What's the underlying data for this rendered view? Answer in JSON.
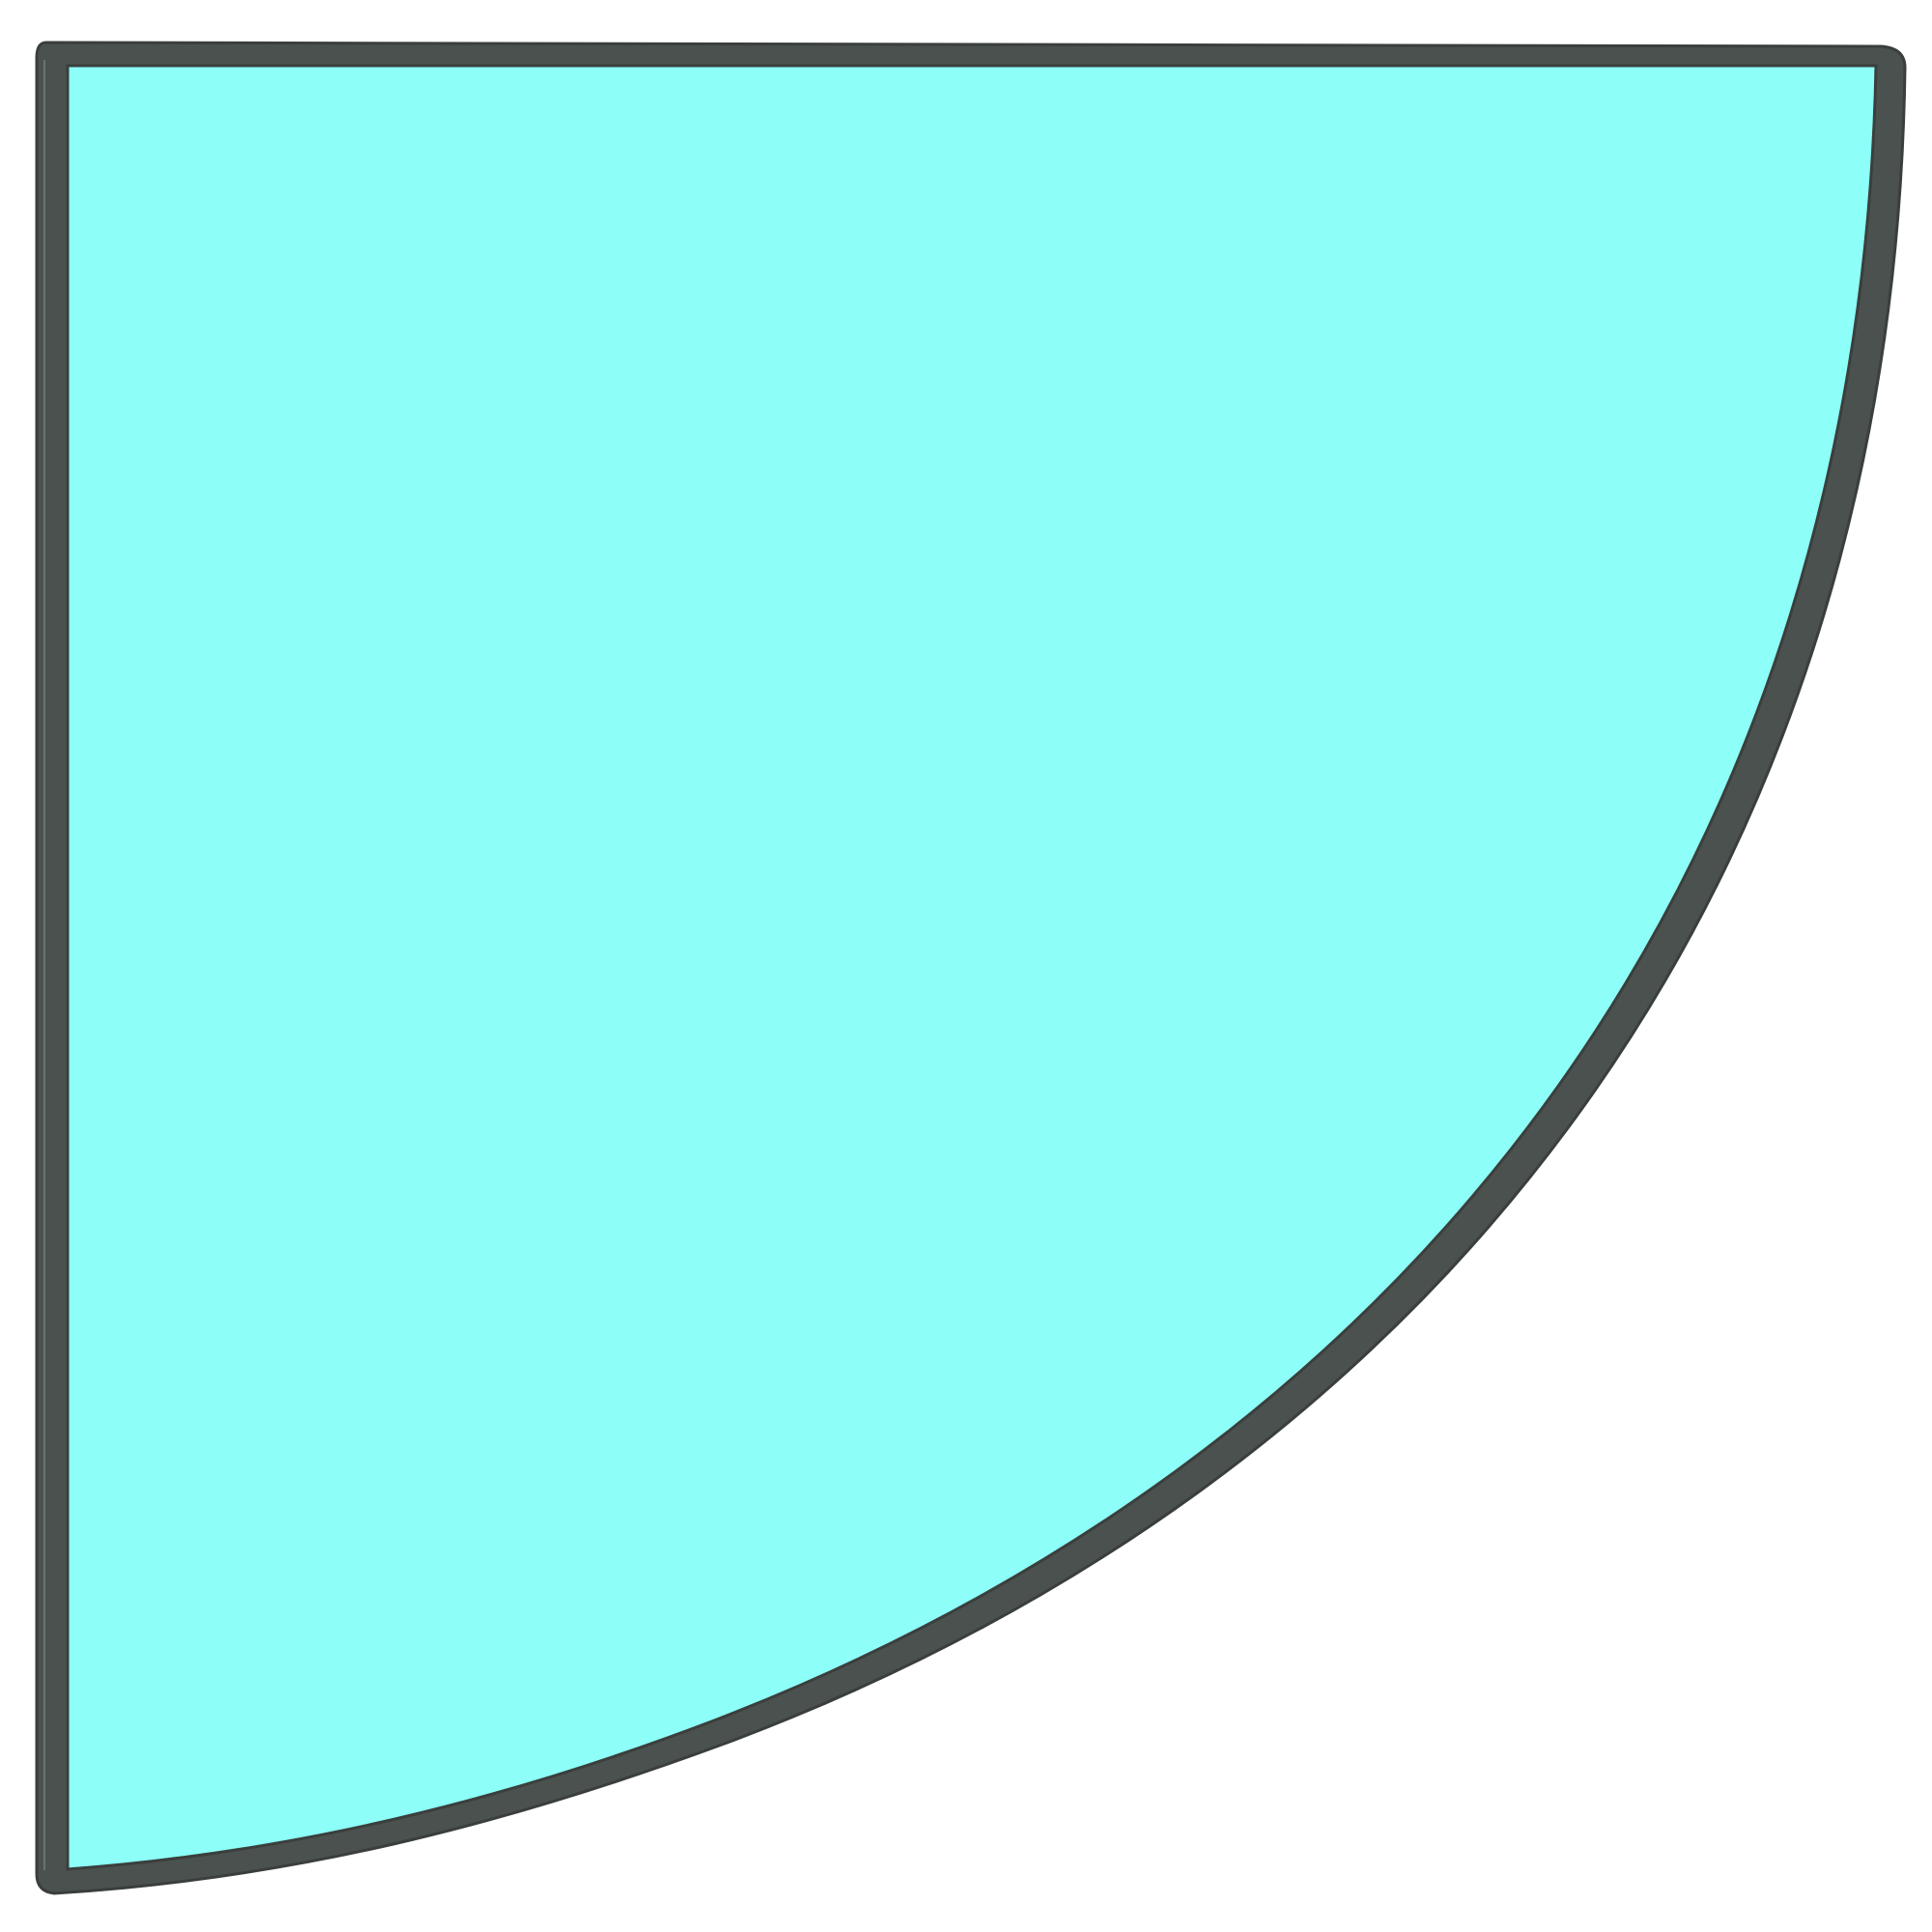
{
  "object": {
    "name": "quarter-circle-corner-shelf-glass",
    "colors": {
      "background": "#ffffff",
      "glass": "#8dfff8",
      "frame": "#4b514e",
      "frame_highlight": "#6b726f",
      "frame_shadow": "#3a3f3d"
    }
  }
}
